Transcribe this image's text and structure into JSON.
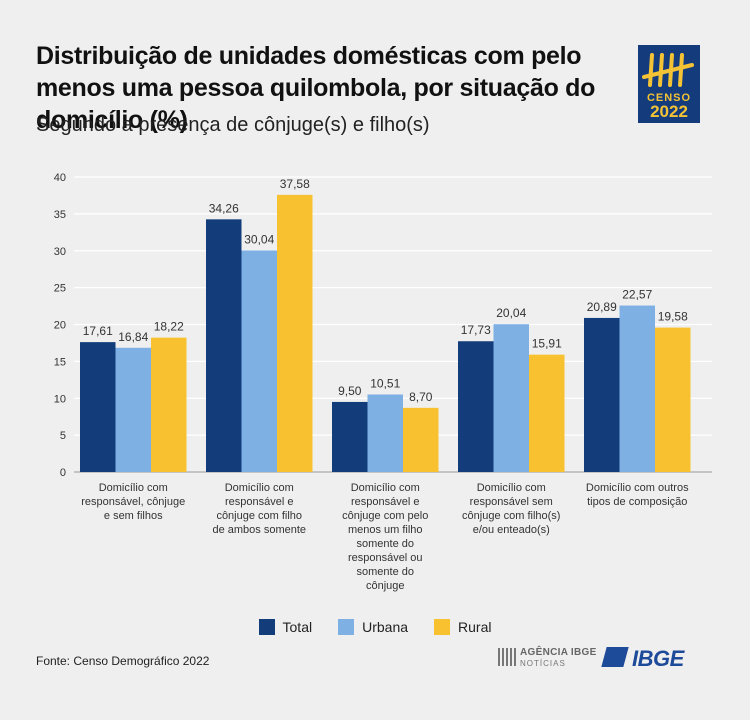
{
  "header": {
    "title": "Distribuição de unidades domésticas com pelo menos uma pessoa quilombola, por situação do domicílio (%)",
    "subtitle": "Segundo a presença de cônjuge(s) e filho(s)"
  },
  "logo": {
    "censo": "CENSO",
    "year": "2022"
  },
  "colors": {
    "Total": "#123d7a",
    "Urbana": "#7fb0e3",
    "Rural": "#f7c130"
  },
  "chart_data": {
    "type": "bar",
    "categories": [
      "Domicílio com responsável, cônjuge e sem filhos",
      "Domicílio com responsável e cônjuge com filho de ambos somente",
      "Domicílio com responsável e cônjuge com pelo menos um filho somente do responsável ou somente do cônjuge",
      "Domicílio com responsável sem cônjuge com filho(s) e/ou enteado(s)",
      "Domicílio com outros tipos de composição"
    ],
    "category_lines": [
      [
        "Domicílio com",
        "responsável, cônjuge",
        "e sem filhos"
      ],
      [
        "Domicílio com",
        "responsável e",
        "cônjuge com filho",
        "de ambos somente"
      ],
      [
        "Domicílio com",
        "responsável e",
        "cônjuge com pelo",
        "menos um filho",
        "somente do",
        "responsável ou",
        "somente do",
        "cônjuge"
      ],
      [
        "Domicílio com",
        "responsável sem",
        "cônjuge com filho(s)",
        "e/ou enteado(s)"
      ],
      [
        "Domicílio com outros",
        "tipos de composição"
      ]
    ],
    "series": [
      {
        "name": "Total",
        "values": [
          17.61,
          34.26,
          9.5,
          17.73,
          20.89
        ]
      },
      {
        "name": "Urbana",
        "values": [
          16.84,
          30.04,
          10.51,
          20.04,
          22.57
        ]
      },
      {
        "name": "Rural",
        "values": [
          18.22,
          37.58,
          8.7,
          15.91,
          19.58
        ]
      }
    ],
    "value_labels": [
      [
        "17,61",
        "34,26",
        "9,50",
        "17,73",
        "20,89"
      ],
      [
        "16,84",
        "30,04",
        "10,51",
        "20,04",
        "22,57"
      ],
      [
        "18,22",
        "37,58",
        "8,70",
        "15,91",
        "19,58"
      ]
    ],
    "ylim": [
      0,
      40
    ],
    "yticks": [
      0,
      5,
      10,
      15,
      20,
      25,
      30,
      35,
      40
    ],
    "grid": true,
    "legend": "bottom-center"
  },
  "source": "Fonte: Censo Demográfico 2022",
  "footer": {
    "agencia": "AGÊNCIA IBGE",
    "noticias": "NOTÍCIAS",
    "ibge": "IBGE"
  }
}
